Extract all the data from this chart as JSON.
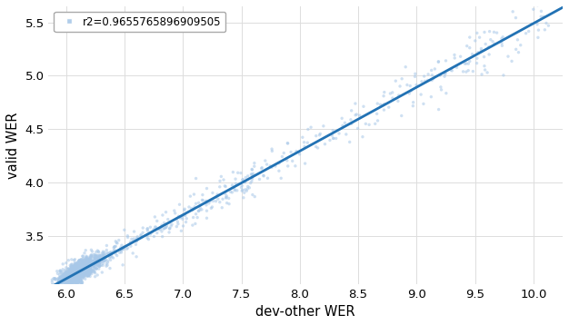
{
  "title": "",
  "xlabel": "dev-other WER",
  "ylabel": "valid WER",
  "xlim": [
    5.85,
    10.25
  ],
  "ylim": [
    3.05,
    5.65
  ],
  "xticks": [
    6.0,
    6.5,
    7.0,
    7.5,
    8.0,
    8.5,
    9.0,
    9.5,
    10.0
  ],
  "yticks": [
    3.5,
    4.0,
    4.5,
    5.0,
    5.5
  ],
  "r2": "r2=0.9655765896909505",
  "scatter_color": "#a8c8e8",
  "scatter_alpha": 0.55,
  "scatter_size": 6,
  "line_color": "#2272b4",
  "line_width": 2.0,
  "slope": 0.598,
  "intercept": -0.49,
  "background_color": "#ffffff",
  "grid_color": "#dddddd",
  "legend_marker_color": "#a8c8e8",
  "seed": 42,
  "n_dense": 1200,
  "n_mid": 200,
  "n_high": 200
}
